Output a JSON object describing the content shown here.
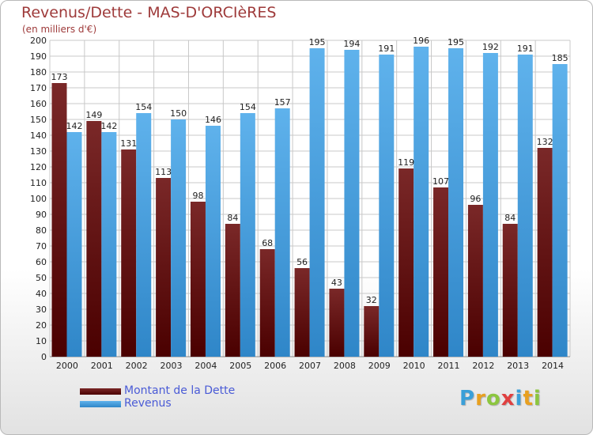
{
  "title": "Revenus/Dette - MAS-D'ORCIèRES",
  "subtitle": "(en milliers d'€)",
  "logo": {
    "text": "Proxiti",
    "colors": [
      "#3a9fd8",
      "#e8a020",
      "#8cc63f",
      "#e04040",
      "#3a9fd8",
      "#e8a020",
      "#8cc63f"
    ]
  },
  "colors": {
    "dette_top": "#7a2828",
    "dette_bottom": "#4a0000",
    "revenus_top": "#5fb2ec",
    "revenus_bottom": "#2f86c8",
    "grid": "#c8c8c8",
    "axis_text": "#222222",
    "title": "#9e3a3a",
    "legend_text": "#4a5bd6"
  },
  "legend": {
    "dette_label": "Montant de la Dette",
    "revenus_label": "Revenus"
  },
  "chart_data": {
    "type": "bar",
    "categories": [
      "2000",
      "2001",
      "2002",
      "2003",
      "2004",
      "2005",
      "2006",
      "2007",
      "2008",
      "2009",
      "2010",
      "2011",
      "2012",
      "2013",
      "2014"
    ],
    "series": [
      {
        "name": "Montant de la Dette",
        "values": [
          173,
          149,
          131,
          113,
          98,
          84,
          68,
          56,
          43,
          32,
          119,
          107,
          96,
          84,
          132
        ]
      },
      {
        "name": "Revenus",
        "values": [
          142,
          142,
          154,
          150,
          146,
          154,
          157,
          195,
          194,
          191,
          196,
          195,
          192,
          191,
          185
        ]
      }
    ],
    "title": "Revenus/Dette - MAS-D'ORCIèRES",
    "ylabel": "(en milliers d'€)",
    "ylim": [
      0,
      200
    ],
    "ytick_step": 10,
    "grid": true,
    "legend_position": "bottom-left"
  }
}
